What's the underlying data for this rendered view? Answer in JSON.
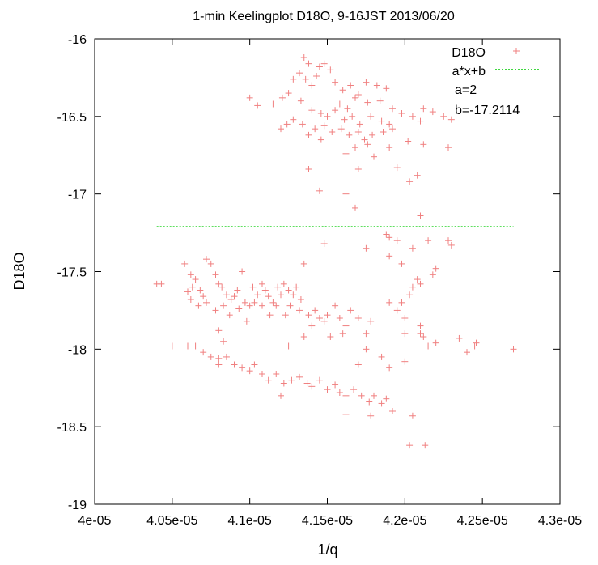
{
  "chart_data": {
    "type": "scatter",
    "title": "1-min Keelingplot D18O, 9-16JST 2013/06/20",
    "xlabel": "1/q",
    "ylabel": "D18O",
    "xlim": [
      4e-05,
      4.3e-05
    ],
    "ylim": [
      -19,
      -16
    ],
    "x_ticks": [
      {
        "value": 4e-05,
        "label": "4e-05"
      },
      {
        "value": 4.05e-05,
        "label": "4.05e-05"
      },
      {
        "value": 4.1e-05,
        "label": "4.1e-05"
      },
      {
        "value": 4.15e-05,
        "label": "4.15e-05"
      },
      {
        "value": 4.2e-05,
        "label": "4.2e-05"
      },
      {
        "value": 4.25e-05,
        "label": "4.25e-05"
      },
      {
        "value": 4.3e-05,
        "label": "4.3e-05"
      }
    ],
    "y_ticks": [
      {
        "value": -16,
        "label": "-16"
      },
      {
        "value": -16.5,
        "label": "-16.5"
      },
      {
        "value": -17,
        "label": "-17"
      },
      {
        "value": -17.5,
        "label": "-17.5"
      },
      {
        "value": -18,
        "label": "-18"
      },
      {
        "value": -18.5,
        "label": "-18.5"
      },
      {
        "value": -19,
        "label": "-19"
      }
    ],
    "grid": false,
    "legend_position": "top-right",
    "series": [
      {
        "name": "D18O",
        "style": "points",
        "color": "#f08080",
        "marker": "+",
        "points": [
          [
            4.135e-05,
            -16.12
          ],
          [
            4.138e-05,
            -16.16
          ],
          [
            4.145e-05,
            -16.18
          ],
          [
            4.148e-05,
            -16.16
          ],
          [
            4.152e-05,
            -16.2
          ],
          [
            4.132e-05,
            -16.22
          ],
          [
            4.136e-05,
            -16.26
          ],
          [
            4.14e-05,
            -16.3
          ],
          [
            4.128e-05,
            -16.26
          ],
          [
            4.143e-05,
            -16.24
          ],
          [
            4.155e-05,
            -16.28
          ],
          [
            4.16e-05,
            -16.33
          ],
          [
            4.165e-05,
            -16.3
          ],
          [
            4.17e-05,
            -16.36
          ],
          [
            4.175e-05,
            -16.28
          ],
          [
            4.182e-05,
            -16.3
          ],
          [
            4.188e-05,
            -16.32
          ],
          [
            4.125e-05,
            -16.35
          ],
          [
            4.121e-05,
            -16.38
          ],
          [
            4.133e-05,
            -16.4
          ],
          [
            4.158e-05,
            -16.42
          ],
          [
            4.163e-05,
            -16.45
          ],
          [
            4.168e-05,
            -16.38
          ],
          [
            4.176e-05,
            -16.41
          ],
          [
            4.184e-05,
            -16.4
          ],
          [
            4.192e-05,
            -16.45
          ],
          [
            4.1e-05,
            -16.38
          ],
          [
            4.105e-05,
            -16.43
          ],
          [
            4.115e-05,
            -16.42
          ],
          [
            4.14e-05,
            -16.46
          ],
          [
            4.146e-05,
            -16.48
          ],
          [
            4.15e-05,
            -16.5
          ],
          [
            4.155e-05,
            -16.46
          ],
          [
            4.161e-05,
            -16.52
          ],
          [
            4.166e-05,
            -16.5
          ],
          [
            4.171e-05,
            -16.55
          ],
          [
            4.178e-05,
            -16.5
          ],
          [
            4.185e-05,
            -16.53
          ],
          [
            4.19e-05,
            -16.55
          ],
          [
            4.198e-05,
            -16.48
          ],
          [
            4.205e-05,
            -16.5
          ],
          [
            4.212e-05,
            -16.45
          ],
          [
            4.218e-05,
            -16.47
          ],
          [
            4.225e-05,
            -16.5
          ],
          [
            4.23e-05,
            -16.52
          ],
          [
            4.21e-05,
            -16.53
          ],
          [
            4.128e-05,
            -16.52
          ],
          [
            4.134e-05,
            -16.55
          ],
          [
            4.142e-05,
            -16.58
          ],
          [
            4.148e-05,
            -16.56
          ],
          [
            4.153e-05,
            -16.6
          ],
          [
            4.159e-05,
            -16.58
          ],
          [
            4.164e-05,
            -16.62
          ],
          [
            4.17e-05,
            -16.6
          ],
          [
            4.174e-05,
            -16.65
          ],
          [
            4.179e-05,
            -16.62
          ],
          [
            4.186e-05,
            -16.6
          ],
          [
            4.192e-05,
            -16.58
          ],
          [
            4.124e-05,
            -16.55
          ],
          [
            4.12e-05,
            -16.58
          ],
          [
            4.138e-05,
            -16.62
          ],
          [
            4.146e-05,
            -16.65
          ],
          [
            4.168e-05,
            -16.7
          ],
          [
            4.176e-05,
            -16.68
          ],
          [
            4.19e-05,
            -16.7
          ],
          [
            4.202e-05,
            -16.66
          ],
          [
            4.212e-05,
            -16.68
          ],
          [
            4.228e-05,
            -16.7
          ],
          [
            4.162e-05,
            -16.74
          ],
          [
            4.18e-05,
            -16.76
          ],
          [
            4.195e-05,
            -16.83
          ],
          [
            4.208e-05,
            -16.88
          ],
          [
            4.17e-05,
            -16.84
          ],
          [
            4.138e-05,
            -16.84
          ],
          [
            4.145e-05,
            -16.98
          ],
          [
            4.162e-05,
            -17.0
          ],
          [
            4.168e-05,
            -17.09
          ],
          [
            4.203e-05,
            -16.92
          ],
          [
            4.21e-05,
            -17.14
          ],
          [
            4.148e-05,
            -17.32
          ],
          [
            4.135e-05,
            -17.45
          ],
          [
            4.175e-05,
            -17.35
          ],
          [
            4.188e-05,
            -17.26
          ],
          [
            4.19e-05,
            -17.28
          ],
          [
            4.195e-05,
            -17.3
          ],
          [
            4.205e-05,
            -17.35
          ],
          [
            4.215e-05,
            -17.3
          ],
          [
            4.228e-05,
            -17.3
          ],
          [
            4.23e-05,
            -17.33
          ],
          [
            4.19e-05,
            -17.4
          ],
          [
            4.198e-05,
            -17.45
          ],
          [
            4.22e-05,
            -17.48
          ],
          [
            4.218e-05,
            -17.52
          ],
          [
            4.208e-05,
            -17.55
          ],
          [
            4.205e-05,
            -17.6
          ],
          [
            4.21e-05,
            -17.58
          ],
          [
            4.203e-05,
            -17.65
          ],
          [
            4.198e-05,
            -17.7
          ],
          [
            4.2e-05,
            -17.8
          ],
          [
            4.195e-05,
            -17.75
          ],
          [
            4.19e-05,
            -17.7
          ],
          [
            4.178e-05,
            -17.82
          ],
          [
            4.175e-05,
            -17.9
          ],
          [
            4.2e-05,
            -17.9
          ],
          [
            4.21e-05,
            -17.85
          ],
          [
            4.212e-05,
            -17.92
          ],
          [
            4.215e-05,
            -17.98
          ],
          [
            4.22e-05,
            -17.96
          ],
          [
            4.235e-05,
            -17.93
          ],
          [
            4.24e-05,
            -18.02
          ],
          [
            4.245e-05,
            -17.98
          ],
          [
            4.246e-05,
            -17.96
          ],
          [
            4.27e-05,
            -18.0
          ],
          [
            4.21e-05,
            -17.9
          ],
          [
            4.04e-05,
            -17.58
          ],
          [
            4.043e-05,
            -17.58
          ],
          [
            4.058e-05,
            -17.45
          ],
          [
            4.062e-05,
            -17.52
          ],
          [
            4.065e-05,
            -17.55
          ],
          [
            4.06e-05,
            -17.63
          ],
          [
            4.063e-05,
            -17.6
          ],
          [
            4.068e-05,
            -17.62
          ],
          [
            4.07e-05,
            -17.66
          ],
          [
            4.072e-05,
            -17.42
          ],
          [
            4.075e-05,
            -17.45
          ],
          [
            4.078e-05,
            -17.52
          ],
          [
            4.08e-05,
            -17.58
          ],
          [
            4.082e-05,
            -17.6
          ],
          [
            4.085e-05,
            -17.65
          ],
          [
            4.088e-05,
            -17.68
          ],
          [
            4.09e-05,
            -17.66
          ],
          [
            4.092e-05,
            -17.62
          ],
          [
            4.095e-05,
            -17.5
          ],
          [
            4.097e-05,
            -17.7
          ],
          [
            4.1e-05,
            -17.72
          ],
          [
            4.102e-05,
            -17.6
          ],
          [
            4.105e-05,
            -17.65
          ],
          [
            4.108e-05,
            -17.58
          ],
          [
            4.11e-05,
            -17.62
          ],
          [
            4.112e-05,
            -17.66
          ],
          [
            4.115e-05,
            -17.7
          ],
          [
            4.118e-05,
            -17.6
          ],
          [
            4.12e-05,
            -17.65
          ],
          [
            4.122e-05,
            -17.58
          ],
          [
            4.125e-05,
            -17.62
          ],
          [
            4.128e-05,
            -17.65
          ],
          [
            4.13e-05,
            -17.6
          ],
          [
            4.133e-05,
            -17.68
          ],
          [
            4.062e-05,
            -17.68
          ],
          [
            4.067e-05,
            -17.72
          ],
          [
            4.072e-05,
            -17.7
          ],
          [
            4.078e-05,
            -17.75
          ],
          [
            4.083e-05,
            -17.72
          ],
          [
            4.087e-05,
            -17.78
          ],
          [
            4.093e-05,
            -17.74
          ],
          [
            4.098e-05,
            -17.82
          ],
          [
            4.103e-05,
            -17.7
          ],
          [
            4.108e-05,
            -17.72
          ],
          [
            4.113e-05,
            -17.78
          ],
          [
            4.117e-05,
            -17.72
          ],
          [
            4.123e-05,
            -17.78
          ],
          [
            4.126e-05,
            -17.72
          ],
          [
            4.132e-05,
            -17.75
          ],
          [
            4.142e-05,
            -17.75
          ],
          [
            4.145e-05,
            -17.8
          ],
          [
            4.14e-05,
            -17.85
          ],
          [
            4.138e-05,
            -17.78
          ],
          [
            4.148e-05,
            -17.82
          ],
          [
            4.15e-05,
            -17.78
          ],
          [
            4.155e-05,
            -17.72
          ],
          [
            4.158e-05,
            -17.8
          ],
          [
            4.162e-05,
            -17.85
          ],
          [
            4.165e-05,
            -17.75
          ],
          [
            4.17e-05,
            -17.8
          ],
          [
            4.16e-05,
            -17.9
          ],
          [
            4.152e-05,
            -17.92
          ],
          [
            4.135e-05,
            -17.92
          ],
          [
            4.125e-05,
            -17.98
          ],
          [
            4.08e-05,
            -17.88
          ],
          [
            4.083e-05,
            -17.95
          ],
          [
            4.05e-05,
            -17.98
          ],
          [
            4.06e-05,
            -17.98
          ],
          [
            4.065e-05,
            -17.98
          ],
          [
            4.07e-05,
            -18.02
          ],
          [
            4.075e-05,
            -18.05
          ],
          [
            4.08e-05,
            -18.06
          ],
          [
            4.08e-05,
            -18.1
          ],
          [
            4.085e-05,
            -18.05
          ],
          [
            4.09e-05,
            -18.1
          ],
          [
            4.095e-05,
            -18.12
          ],
          [
            4.1e-05,
            -18.14
          ],
          [
            4.103e-05,
            -18.1
          ],
          [
            4.108e-05,
            -18.16
          ],
          [
            4.112e-05,
            -18.2
          ],
          [
            4.117e-05,
            -18.16
          ],
          [
            4.122e-05,
            -18.22
          ],
          [
            4.127e-05,
            -18.2
          ],
          [
            4.132e-05,
            -18.18
          ],
          [
            4.137e-05,
            -18.22
          ],
          [
            4.14e-05,
            -18.24
          ],
          [
            4.145e-05,
            -18.2
          ],
          [
            4.15e-05,
            -18.26
          ],
          [
            4.155e-05,
            -18.23
          ],
          [
            4.158e-05,
            -18.28
          ],
          [
            4.162e-05,
            -18.3
          ],
          [
            4.167e-05,
            -18.26
          ],
          [
            4.172e-05,
            -18.3
          ],
          [
            4.177e-05,
            -18.34
          ],
          [
            4.18e-05,
            -18.3
          ],
          [
            4.185e-05,
            -18.35
          ],
          [
            4.188e-05,
            -18.32
          ],
          [
            4.192e-05,
            -18.4
          ],
          [
            4.178e-05,
            -18.43
          ],
          [
            4.162e-05,
            -18.42
          ],
          [
            4.12e-05,
            -18.3
          ],
          [
            4.2e-05,
            -18.08
          ],
          [
            4.185e-05,
            -18.05
          ],
          [
            4.175e-05,
            -18.0
          ],
          [
            4.17e-05,
            -18.1
          ],
          [
            4.19e-05,
            -18.12
          ],
          [
            4.205e-05,
            -18.43
          ],
          [
            4.203e-05,
            -18.62
          ],
          [
            4.213e-05,
            -18.62
          ]
        ]
      },
      {
        "name": "a*x+b",
        "style": "line",
        "color": "#00cc00",
        "dash": "dotted",
        "x_range": [
          4.04e-05,
          4.27e-05
        ]
      }
    ],
    "fit": {
      "a_label": "a=2",
      "b_label": "b=-17.2114",
      "a": 2,
      "b": -17.2114
    }
  }
}
